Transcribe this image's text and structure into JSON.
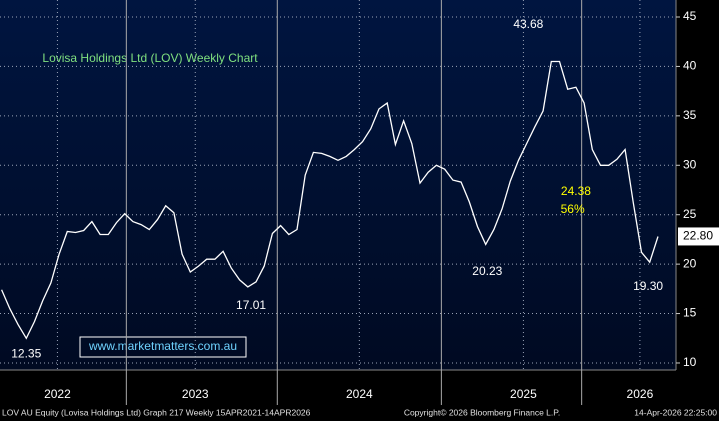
{
  "chart_data": {
    "type": "line",
    "title": "Lovisa Holdings Ltd (LOV) Weekly Chart",
    "watermark": "www.marketmatters.com.au",
    "color": "#ffffff",
    "x": [
      2022.32,
      2022.37,
      2022.42,
      2022.47,
      2022.52,
      2022.57,
      2022.62,
      2022.67,
      2022.72,
      2022.77,
      2022.82,
      2022.87,
      2022.92,
      2022.97,
      2023.02,
      2023.07,
      2023.12,
      2023.17,
      2023.22,
      2023.27,
      2023.32,
      2023.37,
      2023.42,
      2023.47,
      2023.52,
      2023.57,
      2023.62,
      2023.67,
      2023.72,
      2023.77,
      2023.82,
      2023.87,
      2023.92,
      2023.97,
      2024.02,
      2024.07,
      2024.12,
      2024.17,
      2024.22,
      2024.27,
      2024.32,
      2024.37,
      2024.42,
      2024.47,
      2024.52,
      2024.57,
      2024.62,
      2024.67,
      2024.72,
      2024.77,
      2024.82,
      2024.87,
      2024.92,
      2024.97,
      2025.02,
      2025.07,
      2025.12,
      2025.17,
      2025.22,
      2025.27,
      2025.32,
      2025.37,
      2025.42,
      2025.47,
      2025.52,
      2025.57,
      2025.62,
      2025.67,
      2025.72,
      2025.77,
      2025.82,
      2025.87,
      2025.92,
      2025.97,
      2026.02,
      2026.07,
      2026.12,
      2026.17,
      2026.22,
      2026.27,
      2026.32
    ],
    "values": [
      17.4,
      15.5,
      13.9,
      12.5,
      14.2,
      16.3,
      18.1,
      21,
      23.3,
      23.2,
      23.4,
      24.3,
      23,
      23,
      24.2,
      25.1,
      24.3,
      24,
      23.5,
      24.5,
      25.9,
      25.2,
      21,
      19.2,
      19.8,
      20.5,
      20.5,
      21.3,
      19.6,
      18.4,
      17.7,
      18.2,
      19.8,
      23.1,
      23.9,
      23,
      23.5,
      29,
      31.3,
      31.2,
      30.9,
      30.5,
      30.9,
      31.6,
      32.4,
      33.7,
      35.7,
      36.3,
      32.1,
      34.5,
      32.2,
      28.2,
      29.3,
      30,
      29.6,
      28.5,
      28.3,
      26.3,
      23.8,
      22,
      23.5,
      25.6,
      28.4,
      30.5,
      32.2,
      33.9,
      35.5,
      40.5,
      40.5,
      37.7,
      37.9,
      36.3,
      31.6,
      30,
      30,
      30.6,
      31.6,
      26.2,
      21.2,
      20.2,
      22.8
    ],
    "xlim": [
      2022.31,
      2026.43
    ],
    "xticks": [
      {
        "value": 2022.66,
        "label": "2022"
      },
      {
        "value": 2023.5,
        "label": "2023"
      },
      {
        "value": 2024.5,
        "label": "2024"
      },
      {
        "value": 2025.5,
        "label": "2025"
      },
      {
        "value": 2026.21,
        "label": "2026"
      }
    ],
    "ylim": [
      9.29,
      46.72
    ],
    "yticks": [
      10,
      15,
      20,
      25,
      30,
      35,
      40,
      45
    ],
    "grid": true,
    "last_price": {
      "value": 22.8,
      "label": "22.80"
    },
    "annotations": [
      {
        "text": "43.68",
        "x": 2025.53,
        "y": 44.2,
        "color": "#ffffff"
      },
      {
        "text": "20.23",
        "x": 2025.28,
        "y": 19.2,
        "color": "#ffffff"
      },
      {
        "text": "17.01",
        "x": 2023.84,
        "y": 15.8,
        "color": "#ffffff"
      },
      {
        "text": "12.35",
        "x": 2022.47,
        "y": 10.9,
        "color": "#ffffff"
      },
      {
        "text": "19.30",
        "x": 2026.26,
        "y": 17.7,
        "color": "#ffffff"
      },
      {
        "text": "24.38",
        "x": 2025.82,
        "y": 27.3,
        "color": "#ffff00"
      },
      {
        "text": "56%",
        "x": 2025.8,
        "y": 25.5,
        "color": "#ffff00"
      }
    ],
    "footnotes": [
      "LOV AU Equity (Lovisa Holdings Ltd) Graph 217 Weekly 15APR2021-14APR2026",
      "Copyright© 2026 Bloomberg Finance L.P.",
      "14-Apr-2026 22:25:00"
    ]
  }
}
